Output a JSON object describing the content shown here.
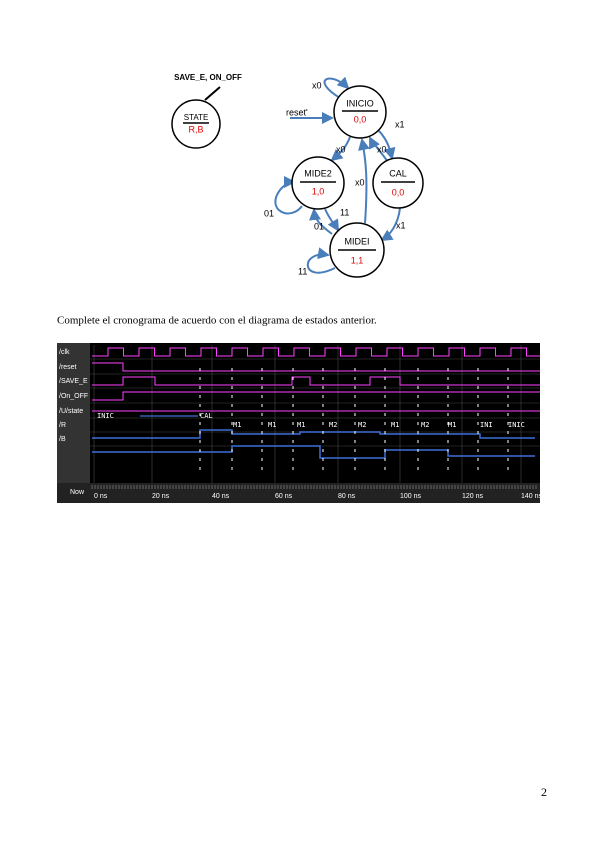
{
  "legend": {
    "inputs": "SAVE_E, ON_OFF",
    "state": "STATE",
    "output": "R,B"
  },
  "diagram": {
    "nodes": [
      {
        "name": "INICIO",
        "output": "0,0"
      },
      {
        "name": "CAL",
        "output": "0,0"
      },
      {
        "name": "MIDE2",
        "output": "1,0"
      },
      {
        "name": "MIDEI",
        "output": "1,1"
      }
    ],
    "edges": [
      "x0",
      "reset'",
      "x1",
      "x0",
      "x0",
      "x0",
      "01",
      "11",
      "01",
      "x1",
      "11"
    ]
  },
  "instruction": "Complete el cronograma de acuerdo con el diagrama de estados anterior.",
  "waveform": {
    "signals": [
      "/clk",
      "/reset",
      "/SAVE_E",
      "/On_OFF",
      "/U/state",
      "/R",
      "/B"
    ],
    "now": "Now",
    "time_labels": [
      "0 ns",
      "20 ns",
      "40 ns",
      "60 ns",
      "80 ns",
      "100 ns",
      "120 ns",
      "140 ns"
    ],
    "handwritten": [
      "INIC",
      "CAL",
      "M1",
      "M1",
      "M1",
      "M2",
      "M2",
      "M1",
      "M2",
      "M1",
      "INI",
      "INIC"
    ]
  },
  "page_number": "2"
}
